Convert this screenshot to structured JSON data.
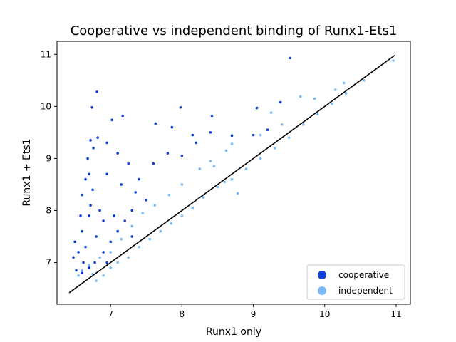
{
  "chart_data": {
    "type": "scatter",
    "title": "Cooperative vs independent binding of Runx1-Ets1",
    "xlabel": "Runx1 only",
    "ylabel": "Runx1 + Ets1",
    "xlim": [
      6.25,
      11.2
    ],
    "ylim": [
      6.2,
      11.25
    ],
    "xticks": [
      7,
      8,
      9,
      10,
      11
    ],
    "yticks": [
      7,
      8,
      9,
      10,
      11
    ],
    "grid": false,
    "legend_position": "bottom-right",
    "identity_line": {
      "from": [
        6.42,
        6.42
      ],
      "to": [
        10.98,
        10.98
      ],
      "color": "#000000"
    },
    "series": [
      {
        "name": "cooperative",
        "color": "#0d3fd9",
        "points": [
          [
            6.6,
            7.6
          ],
          [
            6.7,
            7.9
          ],
          [
            6.65,
            7.3
          ],
          [
            6.72,
            8.1
          ],
          [
            6.8,
            7.5
          ],
          [
            6.55,
            7.2
          ],
          [
            6.9,
            7.8
          ],
          [
            6.75,
            8.4
          ],
          [
            6.62,
            7.0
          ],
          [
            6.85,
            8.0
          ],
          [
            6.7,
            8.7
          ],
          [
            6.72,
            9.35
          ],
          [
            6.76,
            9.2
          ],
          [
            6.68,
            9.0
          ],
          [
            6.81,
            10.28
          ],
          [
            6.74,
            9.98
          ],
          [
            7.02,
            9.74
          ],
          [
            7.17,
            9.82
          ],
          [
            6.95,
            9.3
          ],
          [
            7.1,
            9.1
          ],
          [
            7.25,
            8.9
          ],
          [
            7.4,
            8.6
          ],
          [
            7.6,
            8.9
          ],
          [
            7.8,
            9.1
          ],
          [
            8.0,
            9.05
          ],
          [
            8.2,
            9.3
          ],
          [
            8.4,
            9.5
          ],
          [
            8.42,
            9.82
          ],
          [
            7.98,
            9.98
          ],
          [
            7.63,
            9.67
          ],
          [
            7.86,
            9.6
          ],
          [
            8.15,
            9.45
          ],
          [
            8.7,
            9.44
          ],
          [
            9.05,
            9.97
          ],
          [
            9.2,
            9.55
          ],
          [
            9.38,
            10.08
          ],
          [
            9.51,
            10.93
          ],
          [
            9.0,
            9.45
          ],
          [
            7.35,
            8.35
          ],
          [
            7.5,
            8.2
          ],
          [
            7.15,
            8.5
          ],
          [
            7.3,
            8.0
          ],
          [
            6.95,
            8.7
          ],
          [
            6.82,
            9.4
          ],
          [
            6.6,
            8.3
          ],
          [
            6.65,
            8.6
          ],
          [
            6.58,
            7.9
          ],
          [
            6.5,
            7.4
          ],
          [
            6.48,
            7.1
          ],
          [
            6.52,
            6.85
          ],
          [
            6.6,
            6.8
          ],
          [
            6.7,
            6.9
          ],
          [
            6.78,
            7.0
          ],
          [
            6.9,
            7.2
          ],
          [
            7.0,
            7.4
          ],
          [
            7.1,
            7.6
          ],
          [
            7.2,
            7.8
          ],
          [
            7.3,
            7.5
          ],
          [
            6.95,
            7.0
          ],
          [
            7.05,
            7.9
          ]
        ]
      },
      {
        "name": "independent",
        "color": "#78bbf5",
        "points": [
          [
            6.75,
            6.78
          ],
          [
            6.8,
            6.65
          ],
          [
            6.9,
            6.75
          ],
          [
            7.0,
            6.9
          ],
          [
            7.1,
            7.0
          ],
          [
            7.25,
            7.1
          ],
          [
            7.4,
            7.3
          ],
          [
            7.55,
            7.45
          ],
          [
            7.7,
            7.6
          ],
          [
            7.85,
            7.75
          ],
          [
            8.0,
            7.9
          ],
          [
            8.15,
            8.05
          ],
          [
            8.3,
            8.25
          ],
          [
            8.5,
            8.45
          ],
          [
            8.7,
            8.6
          ],
          [
            8.9,
            8.8
          ],
          [
            9.1,
            9.0
          ],
          [
            9.3,
            9.2
          ],
          [
            9.5,
            9.4
          ],
          [
            9.7,
            9.65
          ],
          [
            9.9,
            9.85
          ],
          [
            10.1,
            10.05
          ],
          [
            10.3,
            10.25
          ],
          [
            10.55,
            10.5
          ],
          [
            10.96,
            10.88
          ],
          [
            10.15,
            10.32
          ],
          [
            10.27,
            10.45
          ],
          [
            9.66,
            10.19
          ],
          [
            9.86,
            10.15
          ],
          [
            9.25,
            9.88
          ],
          [
            9.4,
            9.65
          ],
          [
            9.1,
            9.45
          ],
          [
            8.62,
            9.15
          ],
          [
            8.7,
            9.28
          ],
          [
            8.4,
            8.95
          ],
          [
            8.25,
            8.8
          ],
          [
            8.0,
            8.5
          ],
          [
            7.82,
            8.3
          ],
          [
            7.62,
            8.1
          ],
          [
            7.45,
            7.95
          ],
          [
            7.3,
            7.7
          ],
          [
            7.15,
            7.45
          ],
          [
            7.0,
            7.2
          ],
          [
            6.85,
            7.1
          ],
          [
            6.7,
            6.95
          ],
          [
            6.6,
            6.85
          ],
          [
            6.55,
            6.75
          ],
          [
            8.78,
            8.33
          ],
          [
            8.6,
            8.55
          ],
          [
            8.45,
            8.85
          ]
        ]
      }
    ]
  }
}
